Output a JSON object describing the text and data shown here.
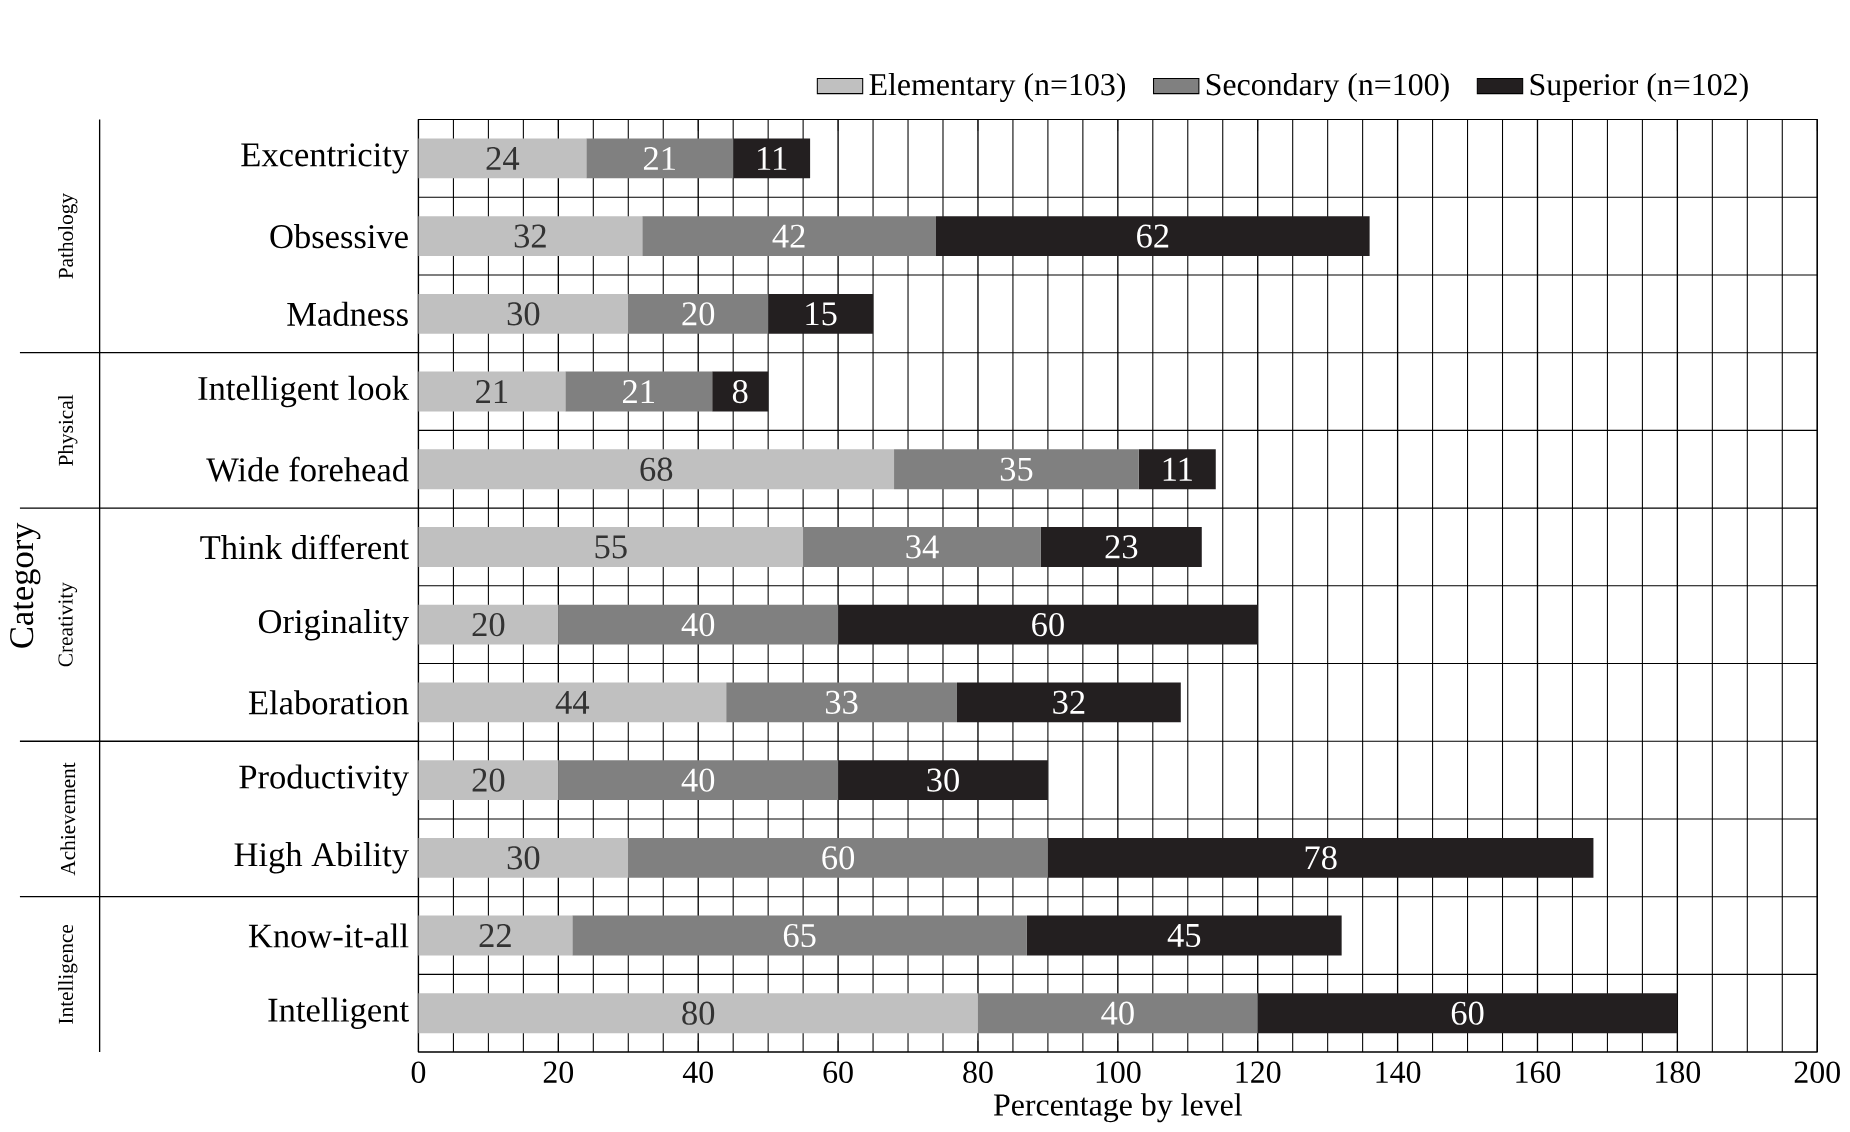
{
  "chart_data": {
    "type": "bar",
    "orientation": "horizontal",
    "stacked": true,
    "xlabel": "Percentage by level",
    "ylabel": "Category",
    "categories": [
      "Excentricity",
      "Obsessive",
      "Madness",
      "Intelligent look",
      "Wide forehead",
      "Think different",
      "Originality",
      "Elaboration",
      "Productivity",
      "High Ability",
      "Know-it-all",
      "Intelligent"
    ],
    "series": [
      {
        "name": "Elementary (n=103)",
        "color": "#c0c0c0",
        "values": [
          24,
          32,
          30,
          21,
          68,
          55,
          20,
          44,
          20,
          30,
          22,
          80
        ]
      },
      {
        "name": "Secondary (n=100)",
        "color": "#808080",
        "values": [
          21,
          42,
          20,
          21,
          35,
          34,
          40,
          33,
          40,
          60,
          65,
          40
        ]
      },
      {
        "name": "Superior (n=102)",
        "color": "#231f20",
        "values": [
          11,
          62,
          15,
          8,
          11,
          23,
          60,
          32,
          30,
          78,
          45,
          60
        ]
      }
    ],
    "xlim": [
      0,
      200
    ],
    "xticks": [
      0,
      20,
      40,
      60,
      80,
      100,
      120,
      140,
      160,
      180,
      200
    ],
    "data_labels": true,
    "grid": true,
    "legend": "top",
    "annotations": [
      "Pathology",
      "Physical",
      "Creativity",
      "Achievement",
      "Intelligence"
    ]
  }
}
